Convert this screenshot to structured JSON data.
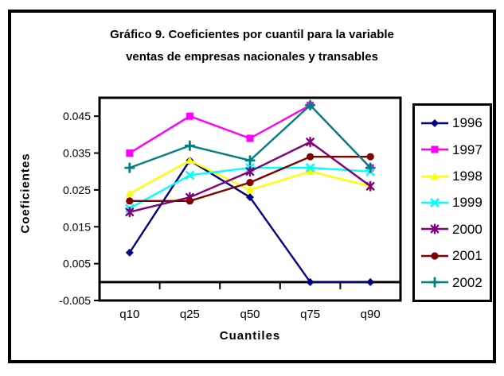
{
  "window": {
    "background": "#ffffff",
    "frame_border_color": "#000000"
  },
  "chart_data": {
    "type": "line",
    "title": "Gráfico 9. Coeficientes por cuantil para la variable ventas de empresas nacionales y transables",
    "title_lines": [
      "Gráfico 9. Coeficientes por cuantil para la variable",
      "ventas de empresas nacionales y transables"
    ],
    "xlabel": "Cuantiles",
    "ylabel": "Coeficientes",
    "categories": [
      "q10",
      "q25",
      "q50",
      "q75",
      "q90"
    ],
    "ylim": [
      -0.005,
      0.05
    ],
    "y_ticks": [
      {
        "label": "-0.005",
        "value": -0.005
      },
      {
        "label": "0.005",
        "value": 0.005
      },
      {
        "label": "0.015",
        "value": 0.015
      },
      {
        "label": "0.025",
        "value": 0.025
      },
      {
        "label": "0.035",
        "value": 0.035
      },
      {
        "label": "0.045",
        "value": 0.045
      }
    ],
    "grid": false,
    "zero_line": true,
    "legend_position": "right",
    "axis_color": "#000000",
    "series": [
      {
        "name": "1996",
        "color": "#000080",
        "marker": "diamond",
        "values": [
          0.008,
          0.033,
          0.023,
          0.0,
          0.0
        ]
      },
      {
        "name": "1997",
        "color": "#FF00FF",
        "marker": "square",
        "values": [
          0.035,
          0.045,
          0.039,
          0.048,
          0.031
        ]
      },
      {
        "name": "1998",
        "color": "#FFFF00",
        "marker": "triangle",
        "values": [
          0.024,
          0.033,
          0.025,
          0.03,
          0.026
        ]
      },
      {
        "name": "1999",
        "color": "#00FFFF",
        "marker": "x",
        "values": [
          0.02,
          0.029,
          0.031,
          0.031,
          0.03
        ]
      },
      {
        "name": "2000",
        "color": "#800080",
        "marker": "star",
        "values": [
          0.019,
          0.023,
          0.03,
          0.038,
          0.026
        ]
      },
      {
        "name": "2001",
        "color": "#800000",
        "marker": "circle",
        "values": [
          0.022,
          0.022,
          0.027,
          0.034,
          0.034
        ]
      },
      {
        "name": "2002",
        "color": "#008080",
        "marker": "plus",
        "values": [
          0.031,
          0.037,
          0.033,
          0.048,
          0.031
        ]
      }
    ]
  }
}
